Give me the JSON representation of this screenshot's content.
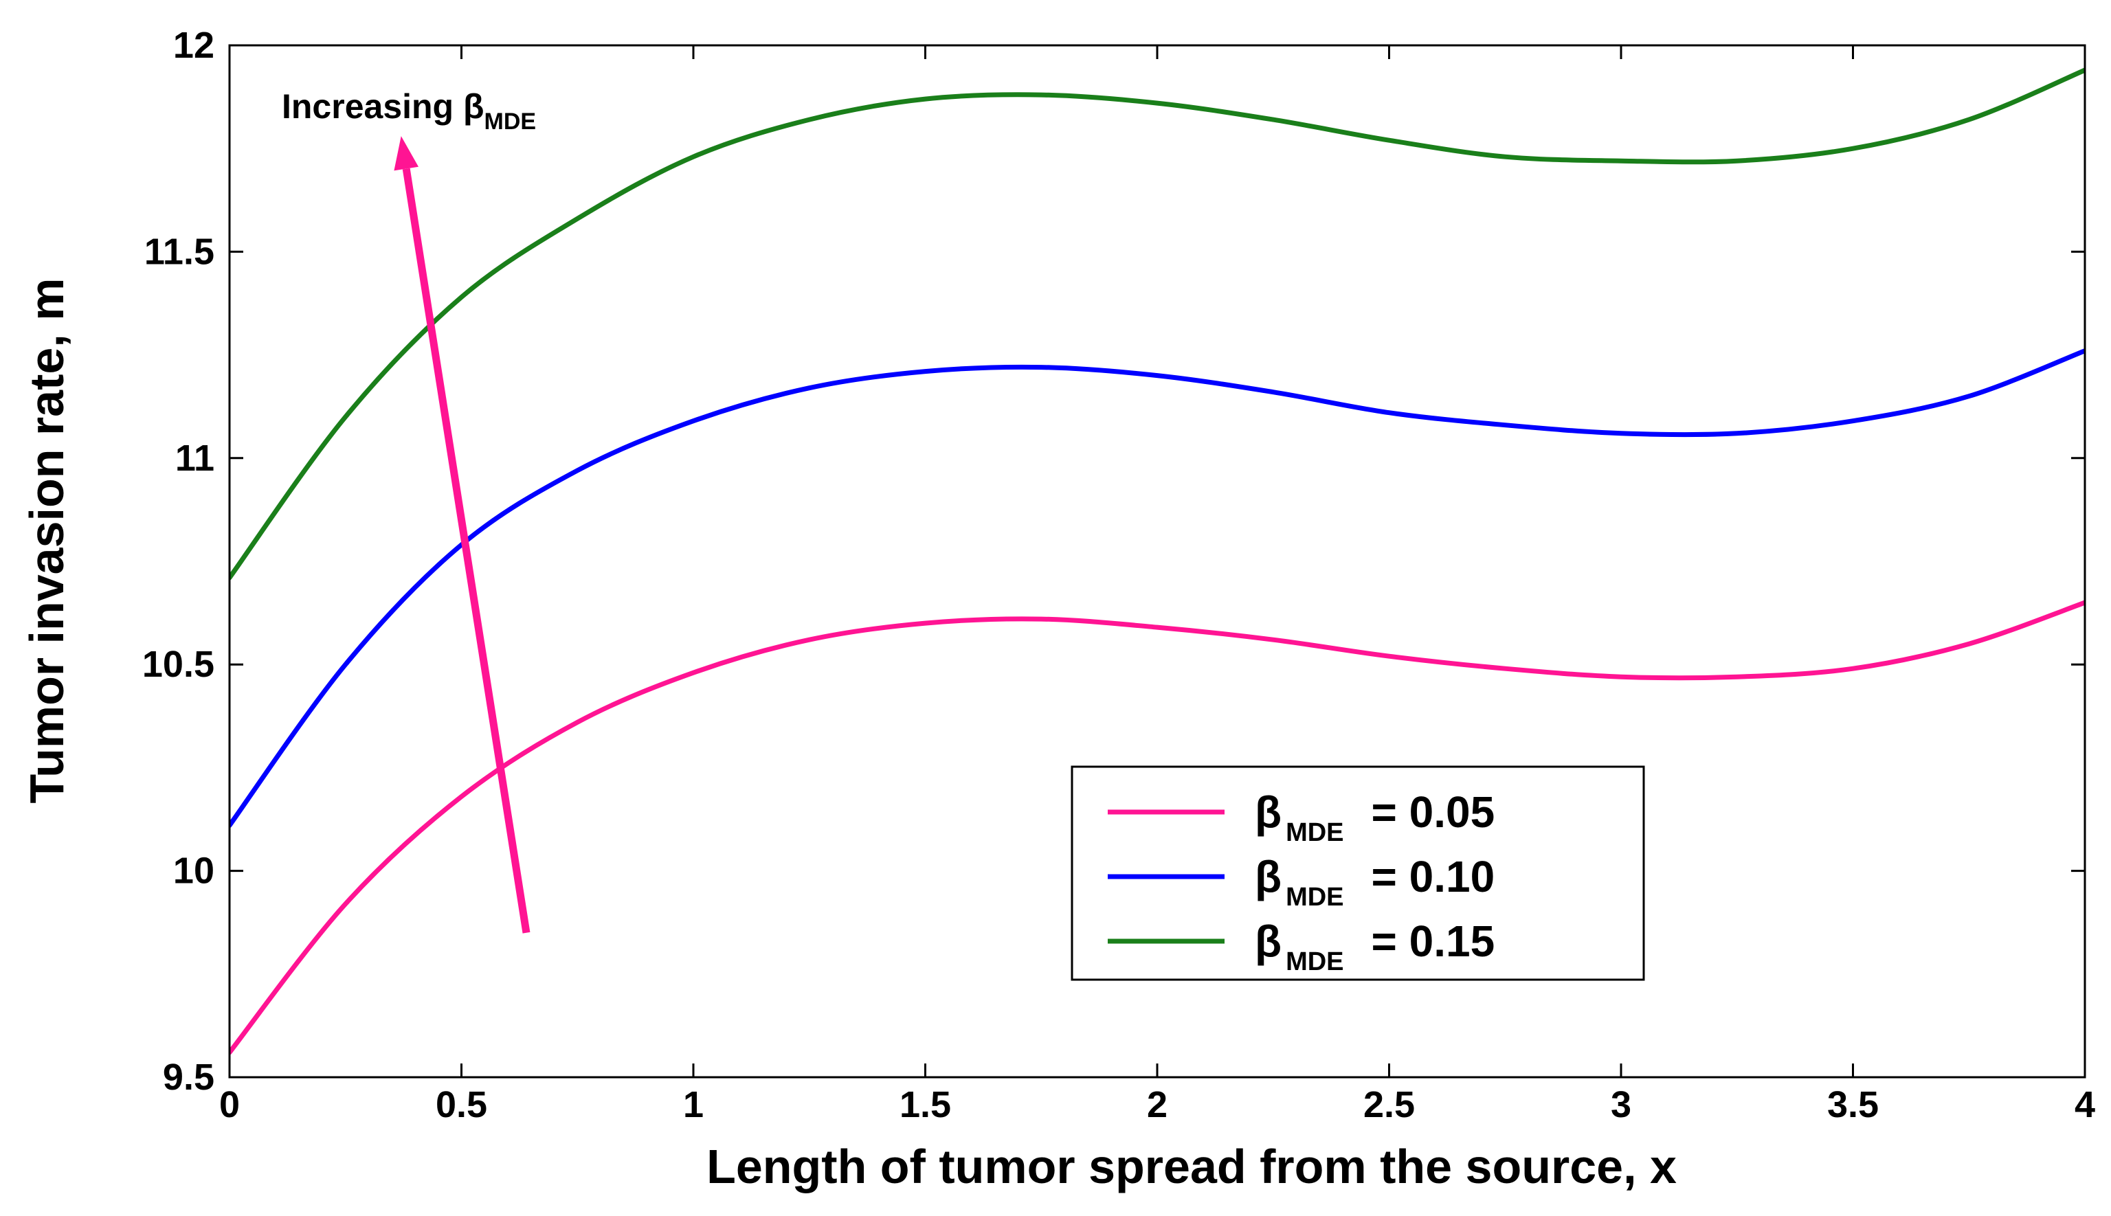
{
  "chart_data": {
    "type": "line",
    "xlabel": "Length of tumor spread from the source, x",
    "ylabel": "Tumor invasion rate, m",
    "xlim": [
      0,
      4
    ],
    "ylim": [
      9.5,
      12
    ],
    "xticks": [
      0,
      0.5,
      1,
      1.5,
      2,
      2.5,
      3,
      3.5,
      4
    ],
    "yticks": [
      9.5,
      10,
      10.5,
      11,
      11.5,
      12
    ],
    "xtick_labels": [
      "0",
      "0.5",
      "1",
      "1.5",
      "2",
      "2.5",
      "3",
      "3.5",
      "4"
    ],
    "ytick_labels": [
      "9.5",
      "10",
      "10.5",
      "11",
      "11.5",
      "12"
    ],
    "grid": false,
    "legend_position": "lower-right",
    "x": [
      0,
      0.25,
      0.5,
      0.75,
      1.0,
      1.25,
      1.5,
      1.75,
      2.0,
      2.25,
      2.5,
      2.75,
      3.0,
      3.25,
      3.5,
      3.75,
      4.0
    ],
    "series": [
      {
        "name": "β MDE = 0.05",
        "legend_symbol": "β",
        "legend_subscript": "MDE",
        "legend_value": "= 0.05",
        "color": "#ff1493",
        "values": [
          9.56,
          9.92,
          10.18,
          10.36,
          10.48,
          10.56,
          10.6,
          10.61,
          10.59,
          10.56,
          10.52,
          10.49,
          10.47,
          10.47,
          10.49,
          10.55,
          10.65
        ]
      },
      {
        "name": "β MDE = 0.10",
        "legend_symbol": "β",
        "legend_subscript": "MDE",
        "legend_value": "= 0.10",
        "color": "#0000ff",
        "values": [
          10.11,
          10.5,
          10.79,
          10.97,
          11.09,
          11.17,
          11.21,
          11.22,
          11.2,
          11.16,
          11.11,
          11.08,
          11.06,
          11.06,
          11.09,
          11.15,
          11.26
        ]
      },
      {
        "name": "β MDE = 0.15",
        "legend_symbol": "β",
        "legend_subscript": "MDE",
        "legend_value": "= 0.15",
        "color": "#1a7f1a",
        "values": [
          10.71,
          11.1,
          11.39,
          11.58,
          11.73,
          11.82,
          11.87,
          11.88,
          11.86,
          11.82,
          11.77,
          11.73,
          11.72,
          11.72,
          11.75,
          11.82,
          11.94
        ]
      }
    ],
    "annotation": {
      "text": "Increasing β",
      "subscript": "MDE",
      "arrow_from": [
        0.64,
        9.85
      ],
      "arrow_to": [
        0.37,
        11.78
      ],
      "arrow_color": "#ff1493"
    }
  }
}
